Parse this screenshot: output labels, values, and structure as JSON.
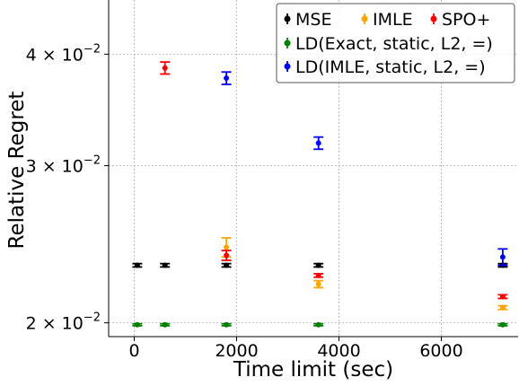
{
  "chart_data": {
    "type": "scatter",
    "xlabel": "Time limit (sec)",
    "ylabel": "Relative Regret",
    "x_scale": "linear",
    "y_scale": "log",
    "xlim": [
      -500,
      7500
    ],
    "ylim": [
      0.0193,
      0.046
    ],
    "x_ticks": [
      {
        "value": 0,
        "label": "0"
      },
      {
        "value": 2000,
        "label": "2000"
      },
      {
        "value": 4000,
        "label": "4000"
      },
      {
        "value": 6000,
        "label": "6000"
      }
    ],
    "y_ticks": [
      {
        "value": 0.02,
        "base": "2",
        "exp": "−2"
      },
      {
        "value": 0.03,
        "base": "3",
        "exp": "−2"
      },
      {
        "value": 0.04,
        "base": "4",
        "exp": "−2"
      }
    ],
    "y_tick_times": "×",
    "y_tick_base10": "10",
    "grid": true,
    "legend_position": "top-right",
    "series": [
      {
        "name": "MSE",
        "color": "#000000",
        "points": [
          {
            "x": 60,
            "y": 0.0232,
            "err": 0.0001
          },
          {
            "x": 600,
            "y": 0.0232,
            "err": 0.0001
          },
          {
            "x": 1800,
            "y": 0.0232,
            "err": 0.0001
          },
          {
            "x": 3600,
            "y": 0.0232,
            "err": 0.0001
          },
          {
            "x": 7200,
            "y": 0.0232,
            "err": 0.0001
          }
        ]
      },
      {
        "name": "IMLE",
        "color": "#ffa500",
        "points": [
          {
            "x": 1800,
            "y": 0.0243,
            "err": 0.0006
          },
          {
            "x": 3600,
            "y": 0.0221,
            "err": 0.0002
          },
          {
            "x": 7200,
            "y": 0.0208,
            "err": 0.0001
          }
        ]
      },
      {
        "name": "SPO+",
        "color": "#ff0000",
        "points": [
          {
            "x": 600,
            "y": 0.0386,
            "err": 0.0006
          },
          {
            "x": 1800,
            "y": 0.0238,
            "err": 0.0003
          },
          {
            "x": 3600,
            "y": 0.0226,
            "err": 0.0001
          },
          {
            "x": 7200,
            "y": 0.0214,
            "err": 0.0001
          }
        ]
      },
      {
        "name": "LD(Exact, static, L2, =)",
        "color": "#008000",
        "points": [
          {
            "x": 60,
            "y": 0.0199,
            "err": 5e-05
          },
          {
            "x": 600,
            "y": 0.0199,
            "err": 5e-05
          },
          {
            "x": 1800,
            "y": 0.0199,
            "err": 5e-05
          },
          {
            "x": 3600,
            "y": 0.0199,
            "err": 5e-05
          },
          {
            "x": 7200,
            "y": 0.0199,
            "err": 5e-05
          }
        ]
      },
      {
        "name": "LD(IMLE, static, L2, =)",
        "color": "#0000ff",
        "points": [
          {
            "x": 1800,
            "y": 0.0376,
            "err": 0.0006
          },
          {
            "x": 3600,
            "y": 0.0318,
            "err": 0.0005
          },
          {
            "x": 7200,
            "y": 0.0237,
            "err": 0.0005
          }
        ]
      }
    ]
  }
}
